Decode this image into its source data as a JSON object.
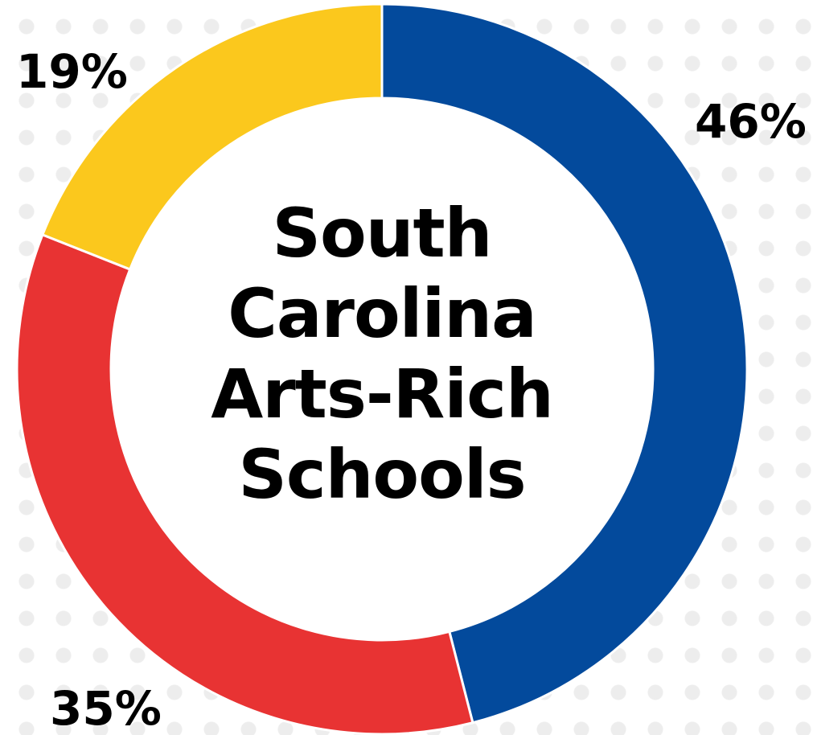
{
  "chart_data": {
    "type": "pie",
    "donut": true,
    "center_title_lines": [
      "South",
      "Carolina",
      "Arts-Rich",
      "Schools"
    ],
    "slices": [
      {
        "label": "46%",
        "value": 46,
        "color": "#034a9c"
      },
      {
        "label": "35%",
        "value": 35,
        "color": "#e83333"
      },
      {
        "label": "19%",
        "value": 19,
        "color": "#fbc81d"
      }
    ],
    "legend": "none"
  }
}
